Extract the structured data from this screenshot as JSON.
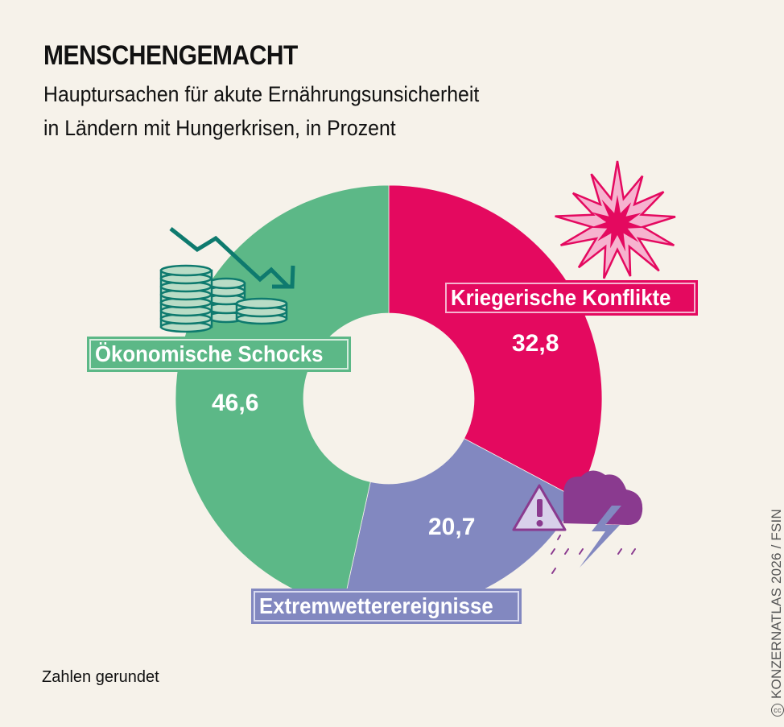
{
  "header": {
    "title": "MENSCHENGEMACHT",
    "subtitle_line1": "Hauptursachen für akute Ernährungsunsicherheit",
    "subtitle_line2": "in Ländern mit Hungerkrisen, in Prozent"
  },
  "footer": {
    "note": "Zahlen gerundet",
    "credit": "KONZERNATLAS 2026 / FSIN",
    "credit_icon": "cc-license-icon"
  },
  "colors": {
    "background": "#f6f2ea",
    "conflict": "#e4095f",
    "weather": "#8288c0",
    "economic": "#5cb887",
    "icon_dark_green": "#0e7a6e",
    "icon_purple": "#8a3a8f"
  },
  "chart_data": {
    "type": "pie",
    "subtype": "donut",
    "title": "MENSCHENGEMACHT",
    "subtitle": "Hauptursachen für akute Ernährungsunsicherheit in Ländern mit Hungerkrisen, in Prozent",
    "unit": "%",
    "start_angle": "12 o'clock, clockwise",
    "categories": [
      "Kriegerische Konflikte",
      "Extremwetterereignisse",
      "Ökonomische Schocks"
    ],
    "values": [
      32.8,
      20.7,
      46.6
    ],
    "value_labels": [
      "32,8",
      "20,7",
      "46,6"
    ],
    "colors": [
      "#e4095f",
      "#8288c0",
      "#5cb887"
    ],
    "icons": [
      "explosion-icon",
      "storm-warning-icon",
      "falling-coins-icon"
    ],
    "annotation": "Zahlen gerundet",
    "source": "KONZERNATLAS 2026 / FSIN"
  }
}
